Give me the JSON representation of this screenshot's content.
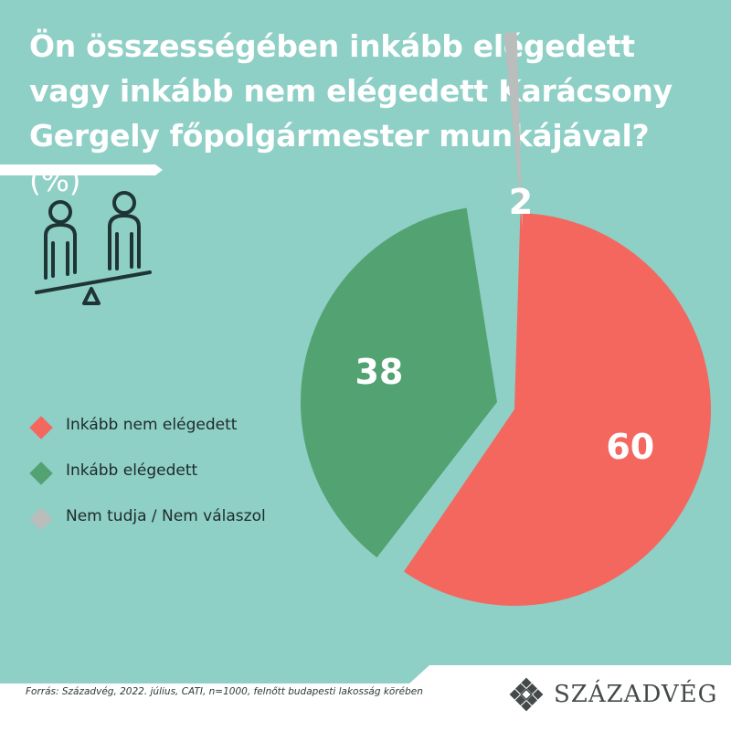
{
  "title": {
    "text": "Ön összességében inkább elégedett vagy inkább nem elégedett Karácsony Gergely főpolgármester munkájával?",
    "unit": "(%)"
  },
  "chart_data": {
    "type": "pie",
    "categories": [
      "Inkább nem elégedett",
      "Inkább elégedett",
      "Nem tudja / Nem válaszol"
    ],
    "values": [
      60,
      38,
      2
    ],
    "colors": [
      "#f4675f",
      "#53a272",
      "#b9bdbb"
    ],
    "exploded": true
  },
  "legend": {
    "placement": "left",
    "items": [
      {
        "label": "Inkább nem elégedett",
        "color": "#f4675f"
      },
      {
        "label": "Inkább elégedett",
        "color": "#53a272"
      },
      {
        "label": "Nem tudja / Nem válaszol",
        "color": "#b9bdbb"
      }
    ]
  },
  "source": "Forrás: Századvég, 2022. július, CATI, n=1000,  felnőtt budapesti lakosság körében",
  "brand": {
    "name": "SZÁZADVÉG"
  },
  "icons": {
    "illustration": "people-seesaw-icon",
    "logo": "szazadveg-logo-icon"
  },
  "colors": {
    "background": "#8ecfc6",
    "footer": "#ffffff",
    "text": "#ffffff"
  }
}
